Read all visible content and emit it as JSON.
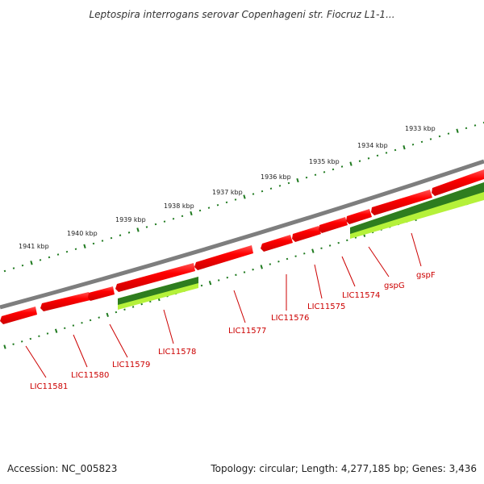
{
  "title": "Leptospira interrogans serovar Copenhageni str. Fiocruz L1-1...",
  "footer": {
    "accession": "Accession: NC_005823",
    "summary": "Topology: circular; Length: 4,277,185 bp; Genes: 3,436"
  },
  "scale_ticks": [
    "1933 kbp",
    "1934 kbp",
    "1935 kbp",
    "1936 kbp",
    "1937 kbp",
    "1938 kbp",
    "1939 kbp",
    "1940 kbp",
    "1941 kbp"
  ],
  "gene_labels": [
    "gspF",
    "gspG",
    "LIC11574",
    "LIC11575",
    "LIC11576",
    "LIC11577",
    "LIC11578",
    "LIC11579",
    "LIC11580",
    "LIC11581"
  ],
  "colors": {
    "cds": "#ff0000",
    "cds_highlight": "#ff6666",
    "green_dark": "#2e7d1f",
    "green_light": "#b5f13a",
    "backbone": "#888888",
    "tick": "#1f7a1f",
    "label": "#cc0000"
  }
}
